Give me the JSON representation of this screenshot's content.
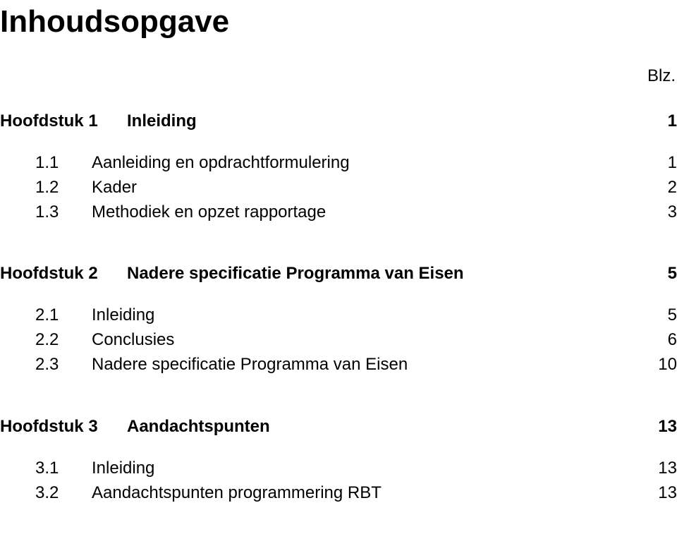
{
  "title": "Inhoudsopgave",
  "page_label": "Blz.",
  "chapters": [
    {
      "chapter_label": "Hoofdstuk 1",
      "chapter_title": "Inleiding",
      "chapter_page": "1",
      "items": [
        {
          "num": "1.1",
          "title": "Aanleiding en opdrachtformulering",
          "page": "1"
        },
        {
          "num": "1.2",
          "title": "Kader",
          "page": "2"
        },
        {
          "num": "1.3",
          "title": "Methodiek en opzet rapportage",
          "page": "3"
        }
      ]
    },
    {
      "chapter_label": "Hoofdstuk 2",
      "chapter_title": "Nadere specificatie Programma van Eisen",
      "chapter_page": "5",
      "items": [
        {
          "num": "2.1",
          "title": "Inleiding",
          "page": "5"
        },
        {
          "num": "2.2",
          "title": "Conclusies",
          "page": "6"
        },
        {
          "num": "2.3",
          "title": "Nadere specificatie Programma van Eisen",
          "page": "10"
        }
      ]
    },
    {
      "chapter_label": "Hoofdstuk 3",
      "chapter_title": "Aandachtspunten",
      "chapter_page": "13",
      "items": [
        {
          "num": "3.1",
          "title": "Inleiding",
          "page": "13"
        },
        {
          "num": "3.2",
          "title": "Aandachtspunten programmering RBT",
          "page": "13"
        }
      ]
    }
  ]
}
